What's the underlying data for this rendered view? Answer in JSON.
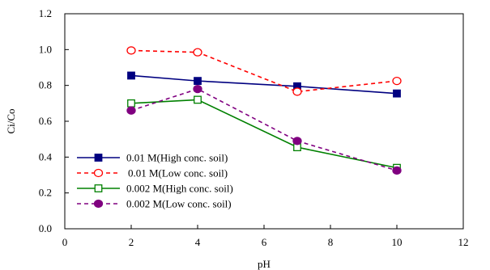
{
  "chart_data": {
    "type": "line",
    "xlabel": "pH",
    "ylabel": "Ci/Co",
    "xlim": [
      0,
      12
    ],
    "ylim": [
      0,
      1.2
    ],
    "xticks": [
      0,
      2,
      4,
      6,
      8,
      10,
      12
    ],
    "yticks": [
      0.0,
      0.2,
      0.4,
      0.6,
      0.8,
      1.0,
      1.2
    ],
    "ytick_labels": [
      "0.0",
      "0.2",
      "0.4",
      "0.6",
      "0.8",
      "1.0",
      "1.2"
    ],
    "grid": false,
    "legend_position": "lower-left",
    "series": [
      {
        "name": "0.01 M(High conc. soil)",
        "x": [
          2,
          4,
          7,
          10
        ],
        "values": [
          0.855,
          0.825,
          0.795,
          0.755
        ],
        "color": "#000080",
        "dash": "solid",
        "marker": "square-filled"
      },
      {
        "name": "0.01 M(Low conc. soil)",
        "x": [
          2,
          4,
          7,
          10
        ],
        "values": [
          0.995,
          0.985,
          0.765,
          0.825
        ],
        "color": "#ff0000",
        "dash": "dashed",
        "marker": "circle-open"
      },
      {
        "name": "0.002 M(High conc. soil)",
        "x": [
          2,
          4,
          7,
          10
        ],
        "values": [
          0.7,
          0.72,
          0.455,
          0.34
        ],
        "color": "#008000",
        "dash": "solid",
        "marker": "square-open"
      },
      {
        "name": "0.002 M(Low conc. soil)",
        "x": [
          2,
          4,
          7,
          10
        ],
        "values": [
          0.66,
          0.78,
          0.49,
          0.325
        ],
        "color": "#800080",
        "dash": "dashed",
        "marker": "circle-filled"
      }
    ]
  }
}
